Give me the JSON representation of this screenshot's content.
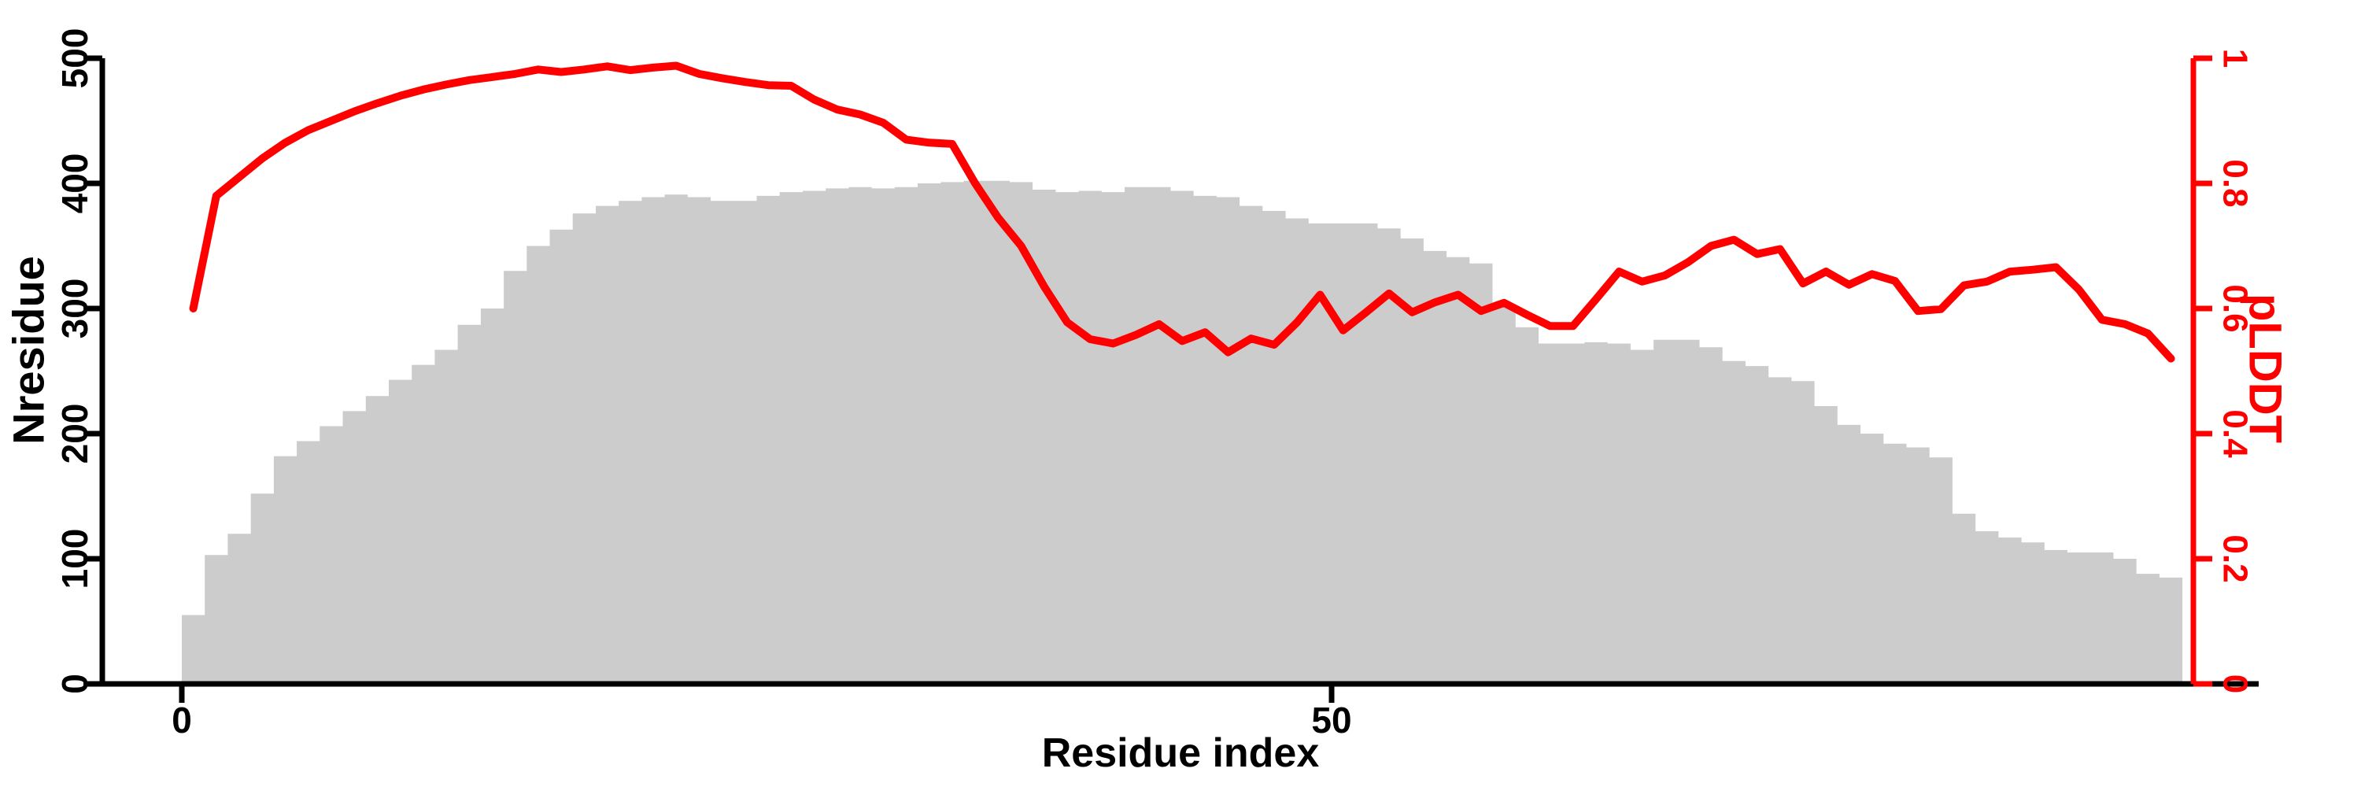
{
  "chart_data": {
    "type": "composite",
    "subtype": [
      "bar",
      "line"
    ],
    "title": "",
    "xlabel": "Residue index",
    "ylabel_left": "Nresidue",
    "ylabel_right": "pLDDT",
    "x_axis": {
      "ticks": [
        0,
        50
      ],
      "tick_labels": [
        "0",
        "50"
      ],
      "range_shown": [
        0,
        87
      ]
    },
    "y_axis_left": {
      "ticks": [
        0,
        100,
        200,
        300,
        400,
        500
      ],
      "tick_labels": [
        "0",
        "100",
        "200",
        "300",
        "400",
        "500"
      ],
      "ylim": [
        0,
        500
      ],
      "color": "#000000"
    },
    "y_axis_right": {
      "ticks": [
        0,
        0.2,
        0.4,
        0.6,
        0.8,
        1
      ],
      "tick_labels": [
        "0",
        "0.2",
        "0.4",
        "0.6",
        "0.8",
        "1"
      ],
      "ylim": [
        0,
        1
      ],
      "color": "#FF0000"
    },
    "grid": false,
    "legend": "none",
    "x_start": 1,
    "series": [
      {
        "name": "Nresidue",
        "type": "bar",
        "axis": "left",
        "color": "#CCCCCC",
        "values": [
          55,
          103,
          120,
          152,
          182,
          194,
          206,
          218,
          230,
          243,
          255,
          267,
          287,
          300,
          330,
          350,
          363,
          376,
          382,
          386,
          389,
          391,
          389,
          386,
          386,
          390,
          393,
          394,
          396,
          397,
          396,
          397,
          400,
          401,
          402,
          402,
          401,
          395,
          393,
          394,
          393,
          397,
          397,
          394,
          390,
          389,
          382,
          378,
          372,
          368,
          368,
          368,
          364,
          356,
          346,
          341,
          336,
          303,
          285,
          272,
          272,
          273,
          272,
          267,
          275,
          275,
          269,
          258,
          254,
          245,
          242,
          222,
          207,
          200,
          192,
          189,
          181,
          136,
          122,
          117,
          113,
          107,
          105,
          105,
          100,
          88,
          85
        ]
      },
      {
        "name": "pLDDT",
        "type": "line",
        "axis": "right",
        "color": "#FF0000",
        "values": [
          0.6,
          0.78,
          0.81,
          0.84,
          0.865,
          0.885,
          0.9,
          0.915,
          0.928,
          0.94,
          0.95,
          0.958,
          0.965,
          0.97,
          0.975,
          0.982,
          0.978,
          0.982,
          0.987,
          0.981,
          0.985,
          0.988,
          0.975,
          0.968,
          0.962,
          0.957,
          0.956,
          0.934,
          0.918,
          0.91,
          0.897,
          0.87,
          0.865,
          0.863,
          0.8,
          0.745,
          0.7,
          0.635,
          0.578,
          0.551,
          0.544,
          0.558,
          0.575,
          0.548,
          0.562,
          0.53,
          0.552,
          0.542,
          0.578,
          0.622,
          0.565,
          0.594,
          0.624,
          0.594,
          0.61,
          0.622,
          0.596,
          0.609,
          0.59,
          0.572,
          0.572,
          0.615,
          0.659,
          0.643,
          0.653,
          0.674,
          0.7,
          0.71,
          0.687,
          0.695,
          0.64,
          0.659,
          0.638,
          0.655,
          0.644,
          0.596,
          0.599,
          0.637,
          0.643,
          0.659,
          0.662,
          0.666,
          0.63,
          0.582,
          0.575,
          0.56,
          0.52
        ]
      }
    ],
    "colors": {
      "bar_fill": "#CCCCCC",
      "line": "#FF0000",
      "axis": "#000000",
      "background": "#FFFFFF"
    }
  }
}
